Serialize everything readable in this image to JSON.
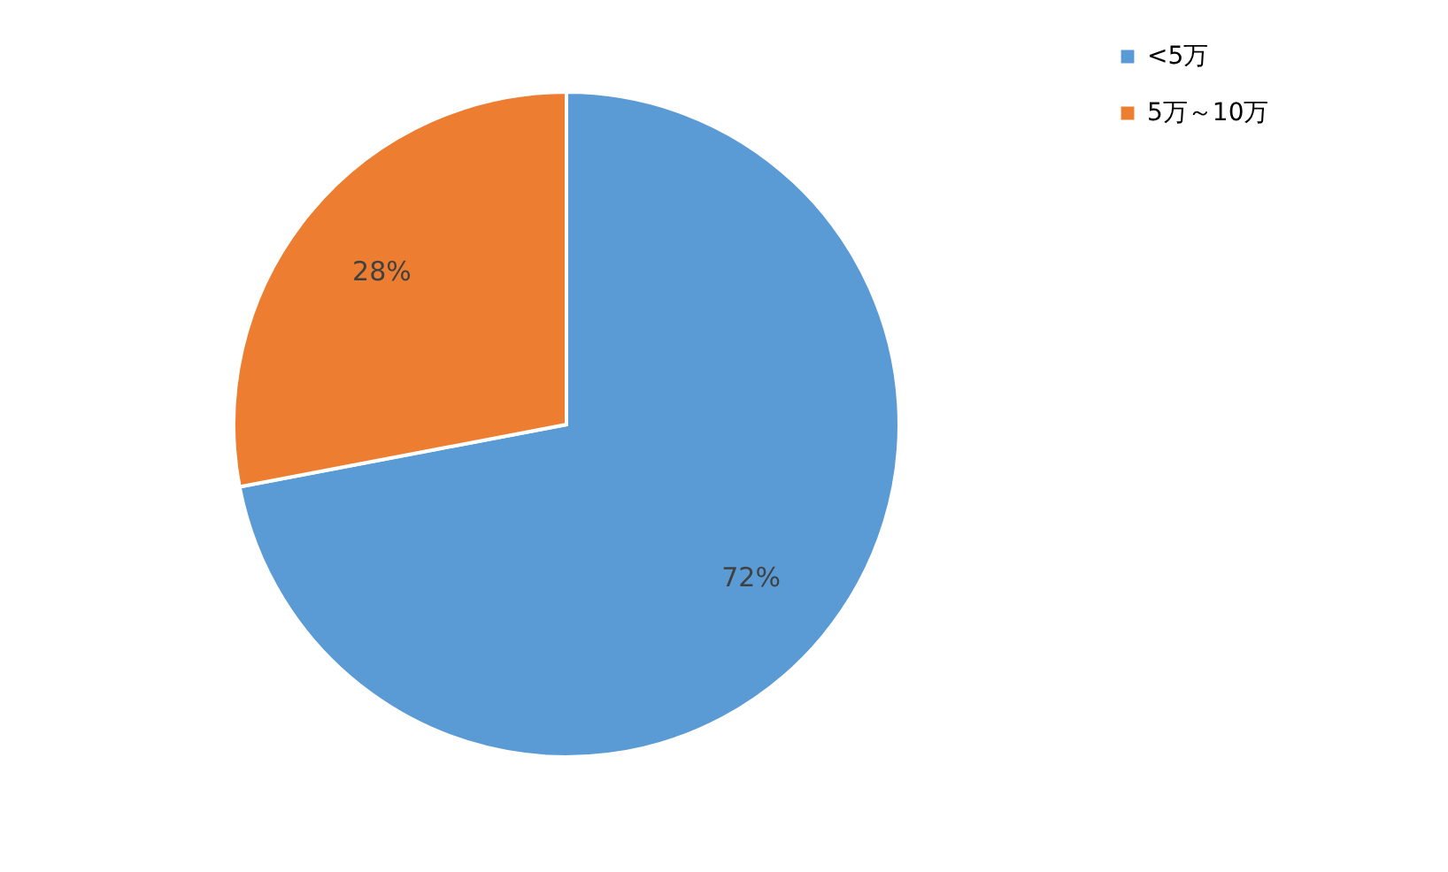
{
  "chart_data": {
    "type": "pie",
    "categories": [
      "<5万",
      "5万～10万"
    ],
    "values": [
      72,
      28
    ],
    "colors": [
      "#5b9bd5",
      "#ed7d31"
    ],
    "value_labels": [
      "72%",
      "28%"
    ],
    "legend": "right"
  }
}
